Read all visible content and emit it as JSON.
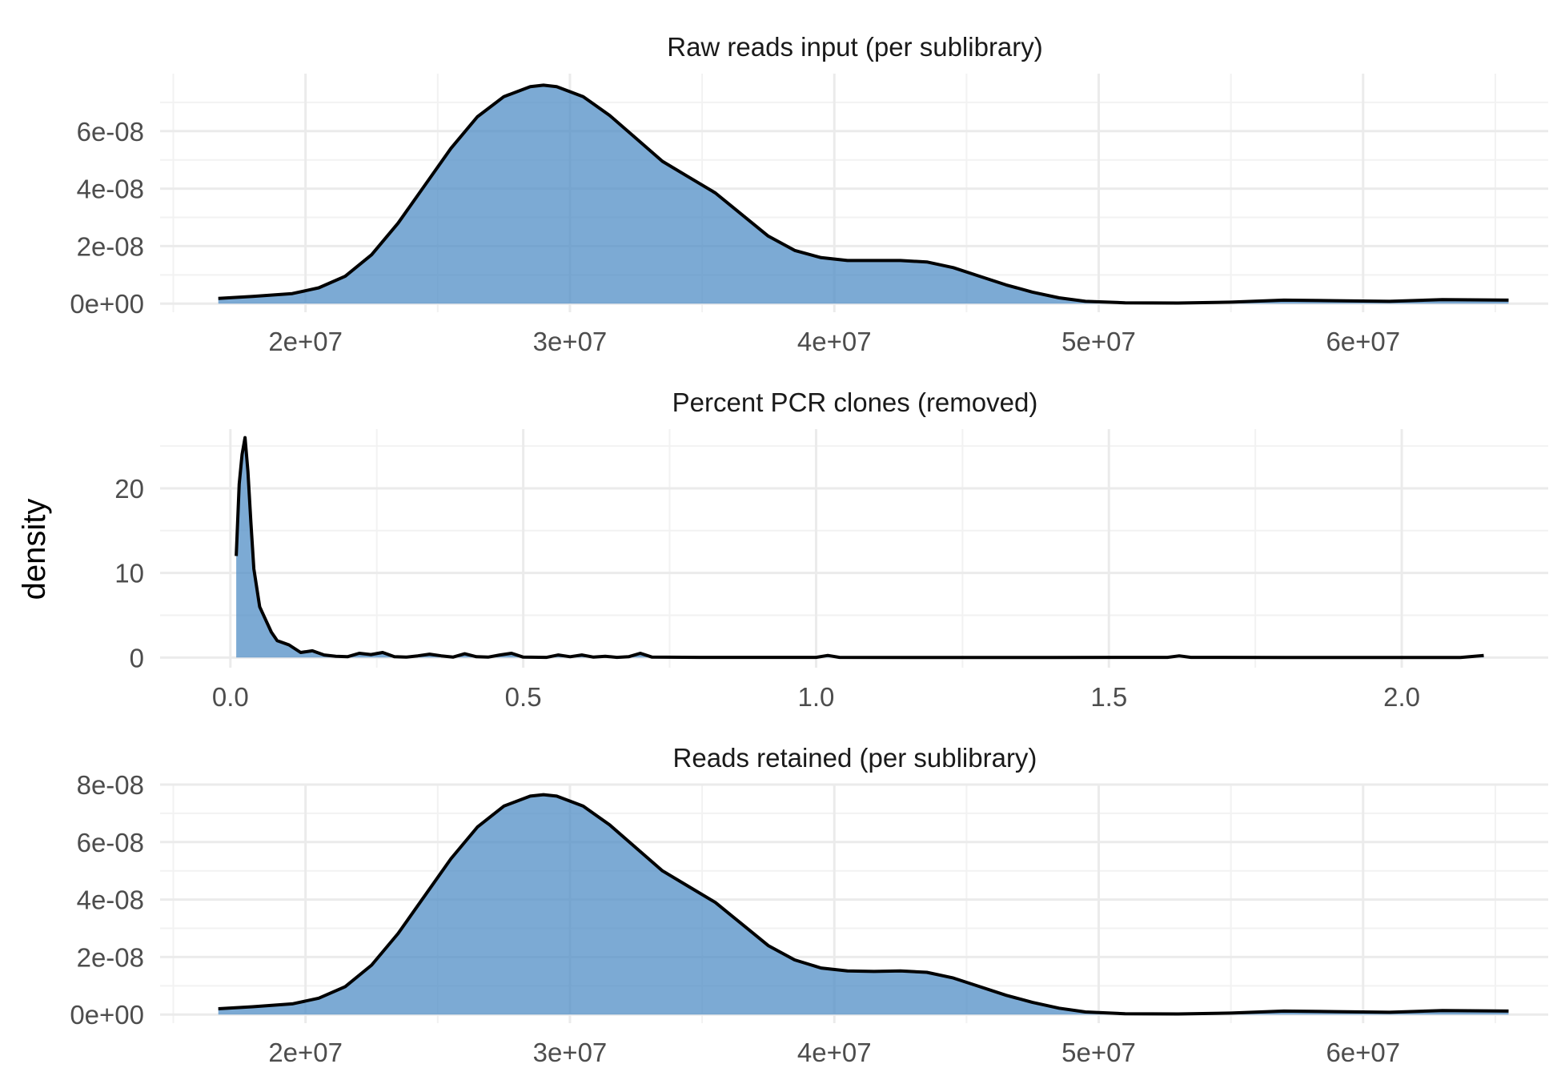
{
  "figure": {
    "shared_ylabel": "density",
    "fill_color": "#4A89C4",
    "fill_opacity": 0.72,
    "line_color": "#000000"
  },
  "chart_data": [
    {
      "type": "area",
      "title": "Raw reads input (per sublibrary)",
      "xlabel": "",
      "ylabel": "density",
      "xlim": [
        14500000,
        67000000
      ],
      "ylim": [
        -3e-09,
        8e-08
      ],
      "x_ticks": [
        20000000,
        30000000,
        40000000,
        50000000,
        60000000
      ],
      "x_tick_labels": [
        "2e+07",
        "3e+07",
        "4e+07",
        "5e+07",
        "6e+07"
      ],
      "y_ticks": [
        0,
        2e-08,
        4e-08,
        6e-08
      ],
      "y_tick_labels": [
        "0e+00",
        "2e-08",
        "4e-08",
        "6e-08"
      ],
      "grid": true,
      "x": [
        16700000,
        18000000,
        19500000,
        20500000,
        21500000,
        22500000,
        23500000,
        24500000,
        25500000,
        26500000,
        27500000,
        28500000,
        29000000,
        29500000,
        30500000,
        31500000,
        32500000,
        33500000,
        34500000,
        35500000,
        36500000,
        37500000,
        38500000,
        39500000,
        40500000,
        41500000,
        42500000,
        43500000,
        44500000,
        45500000,
        46500000,
        47500000,
        48500000,
        49500000,
        51000000,
        53000000,
        55000000,
        57000000,
        59000000,
        61000000,
        63000000,
        65500000
      ],
      "y": [
        1.8e-09,
        2.5e-09,
        3.5e-09,
        5.5e-09,
        9.5e-09,
        1.7e-08,
        2.8e-08,
        4.1e-08,
        5.4e-08,
        6.5e-08,
        7.2e-08,
        7.55e-08,
        7.6e-08,
        7.55e-08,
        7.2e-08,
        6.55e-08,
        5.75e-08,
        4.95e-08,
        4.4e-08,
        3.85e-08,
        3.1e-08,
        2.35e-08,
        1.85e-08,
        1.6e-08,
        1.5e-08,
        1.5e-08,
        1.5e-08,
        1.45e-08,
        1.25e-08,
        9.5e-09,
        6.5e-09,
        4e-09,
        2e-09,
        8e-10,
        3e-10,
        2e-10,
        5e-10,
        1.2e-09,
        1e-09,
        8e-10,
        1.4e-09,
        1.2e-09
      ]
    },
    {
      "type": "area",
      "title": "Percent PCR clones (removed)",
      "xlabel": "",
      "ylabel": "density",
      "xlim": [
        -0.12,
        2.25
      ],
      "ylim": [
        -1.2,
        27.0
      ],
      "x_ticks": [
        0.0,
        0.5,
        1.0,
        1.5,
        2.0
      ],
      "x_tick_labels": [
        "0.0",
        "0.5",
        "1.0",
        "1.5",
        "2.0"
      ],
      "y_ticks": [
        0,
        10,
        20
      ],
      "y_tick_labels": [
        "0",
        "10",
        "20"
      ],
      "grid": true,
      "x": [
        0.01,
        0.015,
        0.02,
        0.025,
        0.03,
        0.035,
        0.04,
        0.05,
        0.06,
        0.07,
        0.08,
        0.1,
        0.12,
        0.14,
        0.16,
        0.18,
        0.2,
        0.22,
        0.24,
        0.26,
        0.28,
        0.3,
        0.32,
        0.34,
        0.36,
        0.38,
        0.4,
        0.42,
        0.44,
        0.46,
        0.48,
        0.5,
        0.54,
        0.56,
        0.58,
        0.6,
        0.62,
        0.64,
        0.66,
        0.68,
        0.7,
        0.72,
        0.8,
        1.0,
        1.02,
        1.04,
        1.2,
        1.4,
        1.6,
        1.62,
        1.64,
        1.8,
        2.0,
        2.1,
        2.14
      ],
      "y": [
        12.0,
        20.5,
        24.0,
        26.0,
        22.0,
        16.0,
        10.5,
        6.0,
        4.5,
        3.0,
        2.0,
        1.5,
        0.6,
        0.8,
        0.3,
        0.15,
        0.1,
        0.5,
        0.35,
        0.6,
        0.1,
        0.05,
        0.2,
        0.4,
        0.2,
        0.05,
        0.45,
        0.1,
        0.05,
        0.3,
        0.5,
        0.05,
        0.02,
        0.3,
        0.1,
        0.3,
        0.05,
        0.15,
        0.02,
        0.1,
        0.5,
        0.05,
        0.02,
        0.02,
        0.25,
        0.02,
        0.0,
        0.0,
        0.02,
        0.2,
        0.02,
        0.0,
        0.0,
        0.0,
        0.25
      ]
    },
    {
      "type": "area",
      "title": "Reads retained (per sublibrary)",
      "xlabel": "",
      "ylabel": "density",
      "xlim": [
        14500000,
        67000000
      ],
      "ylim": [
        -3e-09,
        8e-08
      ],
      "x_ticks": [
        20000000,
        30000000,
        40000000,
        50000000,
        60000000
      ],
      "x_tick_labels": [
        "2e+07",
        "3e+07",
        "4e+07",
        "5e+07",
        "6e+07"
      ],
      "y_ticks": [
        0,
        2e-08,
        4e-08,
        6e-08,
        8e-08
      ],
      "y_tick_labels": [
        "0e+00",
        "2e-08",
        "4e-08",
        "6e-08",
        "8e-08"
      ],
      "grid": true,
      "x": [
        16700000,
        18000000,
        19500000,
        20500000,
        21500000,
        22500000,
        23500000,
        24500000,
        25500000,
        26500000,
        27500000,
        28500000,
        29000000,
        29500000,
        30500000,
        31500000,
        32500000,
        33500000,
        34500000,
        35500000,
        36500000,
        37500000,
        38500000,
        39500000,
        40500000,
        41500000,
        42500000,
        43500000,
        44500000,
        45500000,
        46500000,
        47500000,
        48500000,
        49500000,
        51000000,
        53000000,
        55000000,
        57000000,
        59000000,
        61000000,
        63000000,
        65500000
      ],
      "y": [
        2e-09,
        2.7e-09,
        3.7e-09,
        5.7e-09,
        9.7e-09,
        1.72e-08,
        2.82e-08,
        4.12e-08,
        5.42e-08,
        6.52e-08,
        7.25e-08,
        7.6e-08,
        7.65e-08,
        7.6e-08,
        7.25e-08,
        6.6e-08,
        5.8e-08,
        5e-08,
        4.45e-08,
        3.9e-08,
        3.15e-08,
        2.4e-08,
        1.9e-08,
        1.62e-08,
        1.52e-08,
        1.5e-08,
        1.52e-08,
        1.47e-08,
        1.27e-08,
        9.7e-09,
        6.7e-09,
        4.2e-09,
        2.2e-09,
        9e-10,
        3e-10,
        2e-10,
        5e-10,
        1.2e-09,
        1e-09,
        8e-10,
        1.4e-09,
        1.2e-09
      ]
    }
  ]
}
